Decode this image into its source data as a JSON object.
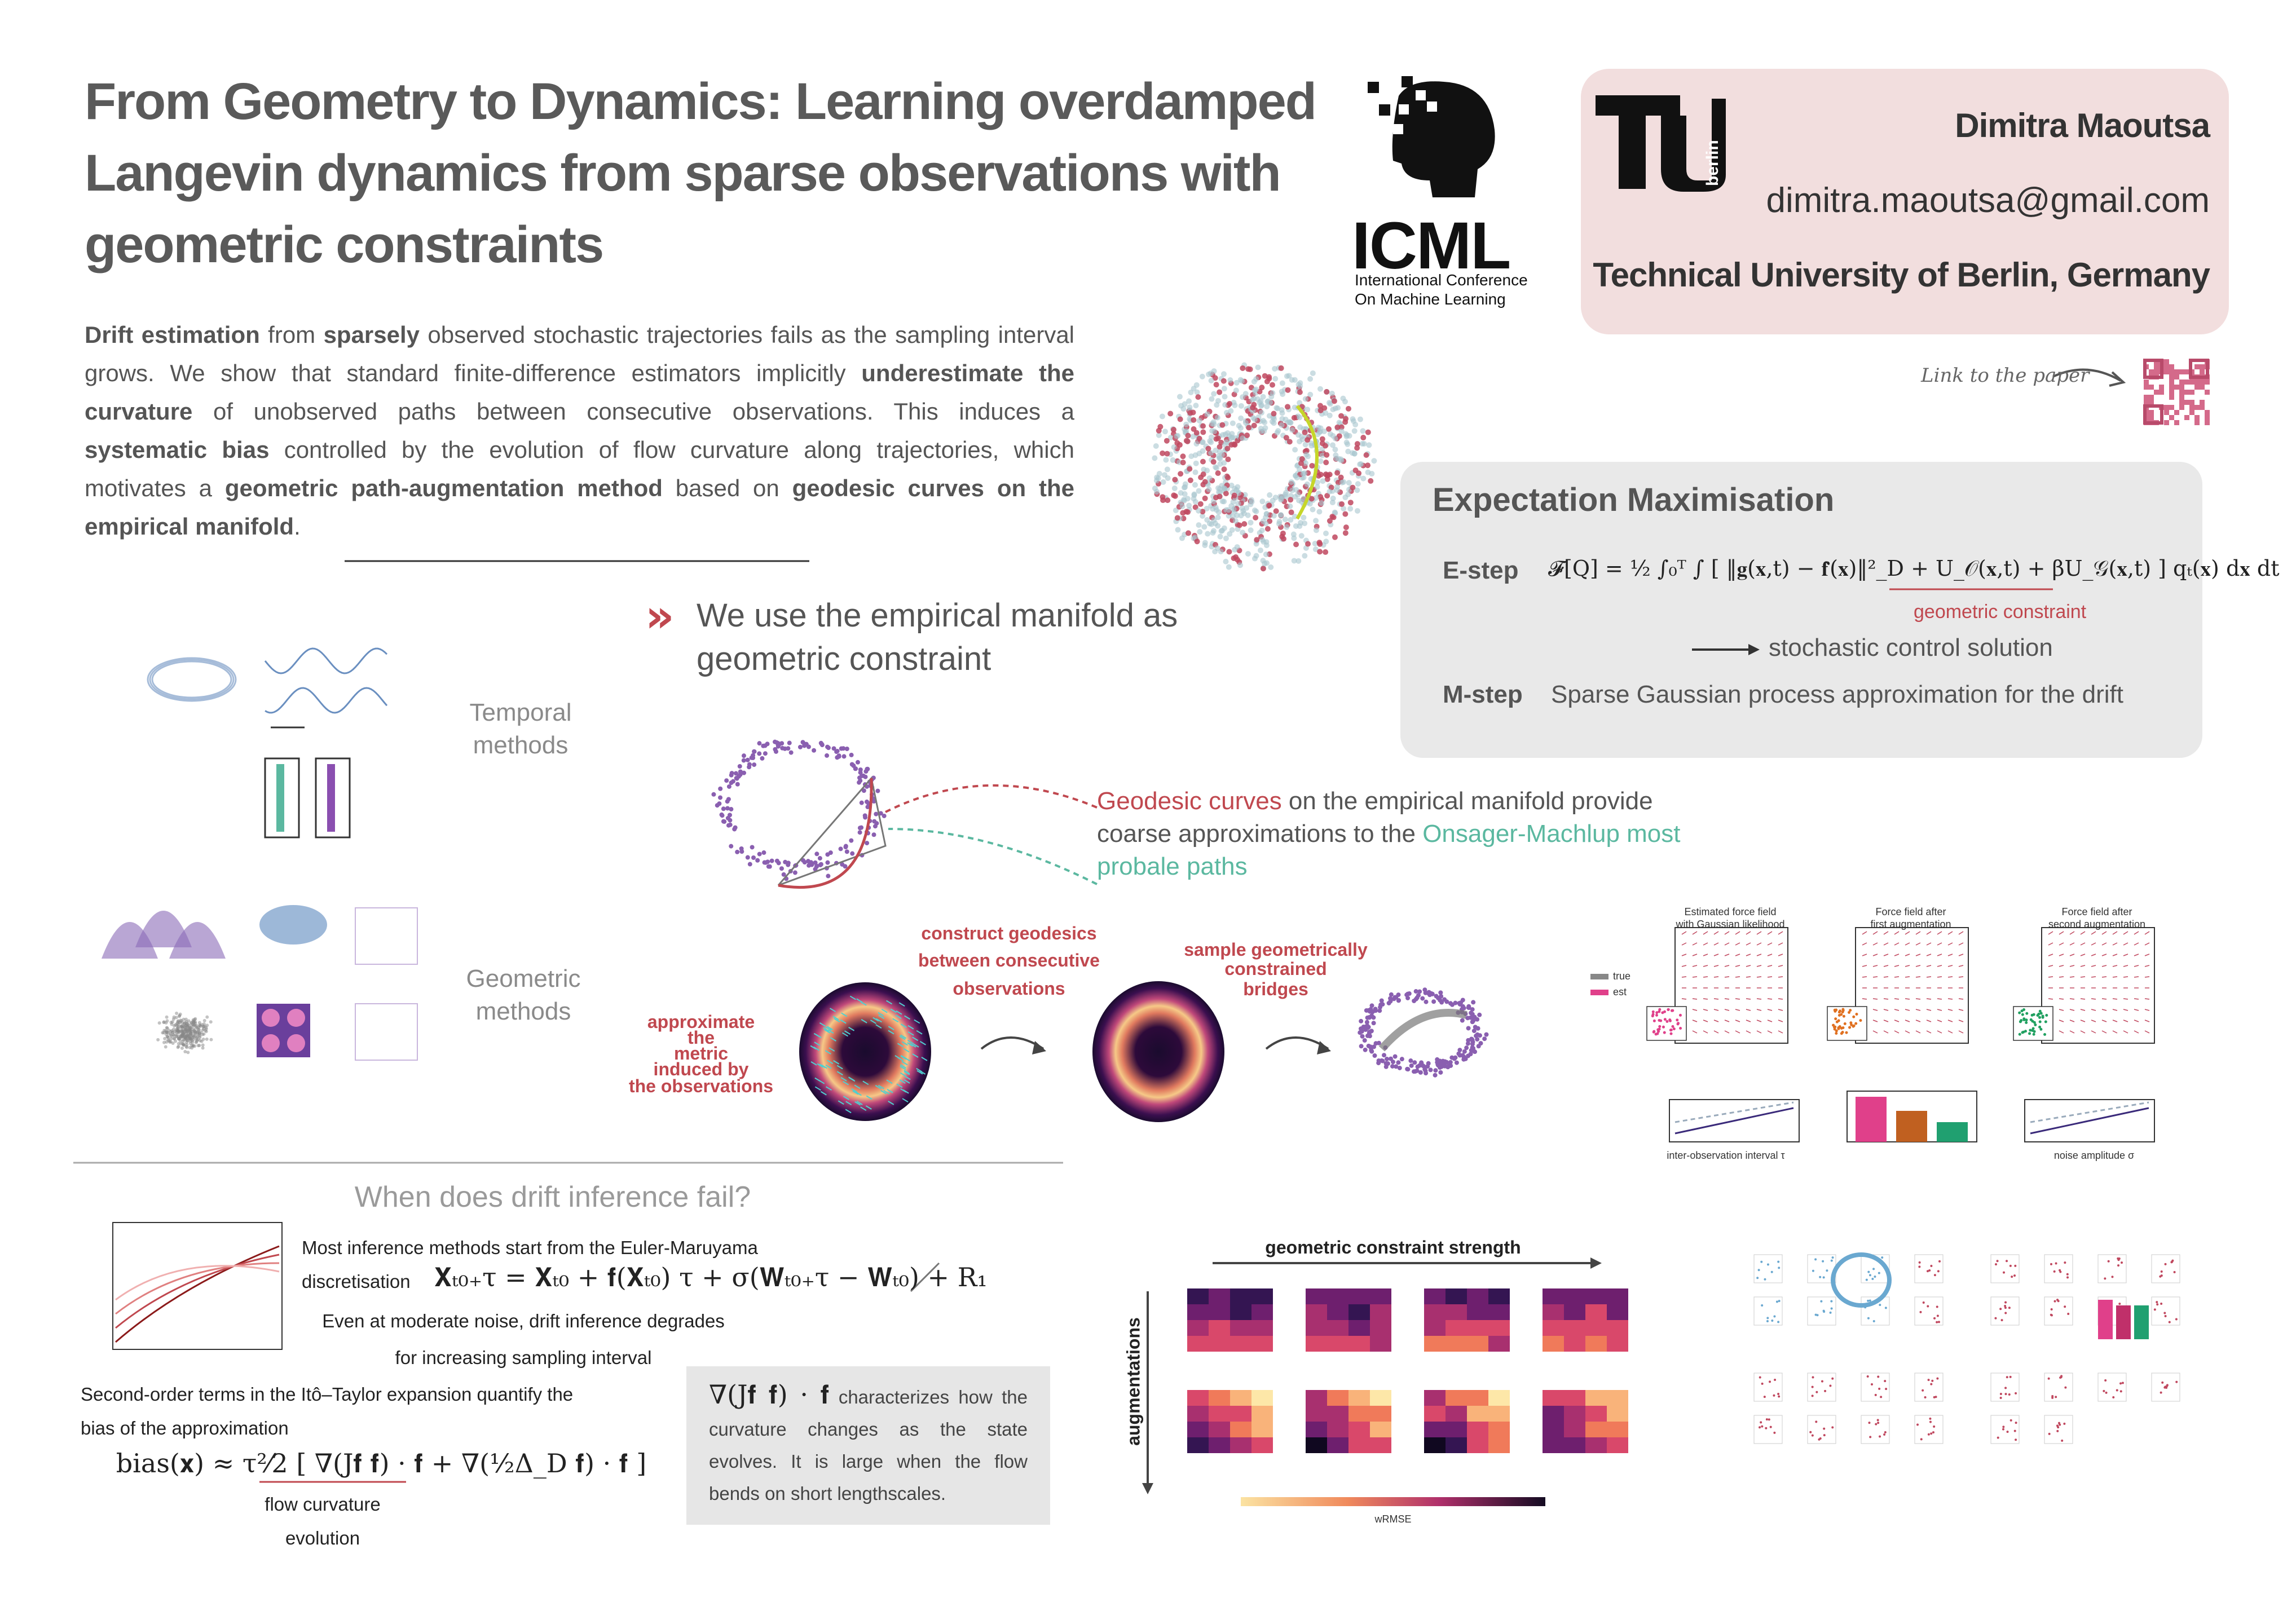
{
  "header": {
    "title_lines": [
      "From Geometry to Dynamics: Learning overdamped",
      "Langevin dynamics from sparse observations with",
      "geometric constraints"
    ],
    "logo_text": "ICML",
    "logo_subtitle_lines": [
      "International Conference",
      "On Machine Learning"
    ],
    "tu_logo_text": "berlin",
    "author": "Dimitra Maoutsa",
    "email": "dimitra.maoutsa@gmail.com",
    "affiliation": "Technical University of Berlin, Germany",
    "link_label": "Link to the paper"
  },
  "abstract": {
    "segments": [
      {
        "text": "Drift estimation",
        "bold": true
      },
      {
        "text": " from ",
        "bold": false
      },
      {
        "text": "sparsely",
        "bold": true
      },
      {
        "text": " observed stochastic trajectories fails as the sampling interval grows. We show that standard finite-difference estimators implicitly ",
        "bold": false
      },
      {
        "text": "underestimate the curvature",
        "bold": true
      },
      {
        "text": " of unobserved paths between consecutive observations. This induces a ",
        "bold": false
      },
      {
        "text": "systematic bias",
        "bold": true
      },
      {
        "text": " controlled by the evolution of flow curvature along trajectories, which motivates a ",
        "bold": false
      },
      {
        "text": "geometric path-augmentation method",
        "bold": true
      },
      {
        "text": " based on ",
        "bold": false
      },
      {
        "text": "geodesic curves on the empirical manifold",
        "bold": true
      },
      {
        "text": ".",
        "bold": false
      }
    ]
  },
  "em": {
    "title": "Expectation Maximisation",
    "e_label": "E-step",
    "e_equation": "𝓕[Q] = ½ ∫₀ᵀ ∫ [ ‖𝐠(𝐱,t) − 𝐟̂(𝐱)‖²_D + U_𝒪(𝐱,t) + βU_𝒢(𝐱,t) ] qₜ(𝐱) d𝐱 dt",
    "e_note": "geometric constraint",
    "arrow_text": "stochastic control solution",
    "m_label": "M-step",
    "m_text": "Sparse Gaussian process approximation for the drift"
  },
  "manifold": {
    "heading_lines": [
      "We use the empirical manifold as",
      "geometric constraint"
    ],
    "temporal_lines": [
      "Temporal",
      "methods"
    ],
    "geometric_lines": [
      "Geometric",
      "methods"
    ],
    "geodesic_text": [
      {
        "text": "Geodesic curves",
        "color": "#c0484f"
      },
      {
        "text": " on the empirical manifold provide coarse approximations to the ",
        "color": "#555555"
      },
      {
        "text": "Onsager-Machlup most probale paths",
        "color": "#5bb8a0"
      }
    ],
    "construct_lines": [
      "construct geodesics",
      "between consecutive",
      "observations"
    ],
    "approximate_lines": [
      "approximate",
      "the",
      "metric",
      "induced by",
      "the observations"
    ],
    "sample_lines": [
      "sample geometrically",
      "constrained",
      "bridges"
    ]
  },
  "results": {
    "panel_titles": [
      [
        "Estimated force field",
        "with Gaussian likelihood"
      ],
      [
        "Force field after",
        "first augmentation"
      ],
      [
        "Force field after",
        "second augmentation"
      ]
    ],
    "legend": [
      "true",
      "est"
    ],
    "x_labels": [
      "inter-observation interval τ",
      "noise amplitude σ"
    ]
  },
  "failure": {
    "title": "When does drift inference fail?",
    "intro_lines": [
      "Most inference methods start from the Euler-Maruyama",
      "discretisation"
    ],
    "euler_equation": "𝐗ₜ₀₊τ = 𝐗ₜ₀ + 𝐟(𝐗ₜ₀) τ + σ(𝐖ₜ₀₊τ − 𝐖ₜ₀) + R₁",
    "warning_lines": [
      "Even at moderate noise, drift inference degrades",
      "for increasing sampling interval"
    ],
    "bias_lines": [
      "Second-order terms in the Itô–Taylor expansion quantify the",
      "bias of the approximation"
    ],
    "bias_equation": "bias(𝐱) ≈ τ²⁄2 [ ∇(J𝐟 𝐟) · 𝐟 + ∇(½Δ_D 𝐟) · 𝐟 ]",
    "bias_note_lines": [
      "flow curvature",
      "evolution"
    ],
    "box_equation": "∇(J𝐟 𝐟) · 𝐟",
    "box_text": " characterizes how the curvature changes as the state evolves. It is large when the flow bends on short lengthscales."
  },
  "heatmaps": {
    "title": "geometric constraint strength",
    "row_label": "augmentations",
    "colorbar_label": "wRMSE"
  }
}
